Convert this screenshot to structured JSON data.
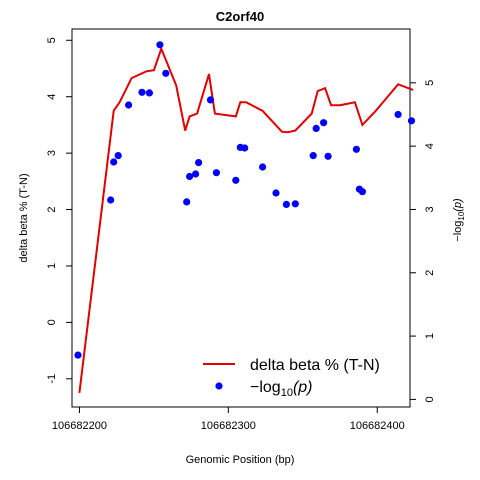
{
  "chart_data": {
    "type": "line",
    "title": "C2orf40",
    "xlabel": "Genomic Position (bp)",
    "ylabel_left": "delta beta % (T-N)",
    "ylabel_right": "−log",
    "ylabel_right_sub": "10",
    "ylabel_right_p": "(p)",
    "x_ticks": [
      106682200,
      106682300,
      106682400
    ],
    "x_tick_labels": [
      "106682200",
      "106682300",
      "106682400"
    ],
    "xlim": [
      106682195,
      106682422
    ],
    "ylim_left": [
      -1.5,
      5.2
    ],
    "yticks_left": [
      -1,
      0,
      1,
      2,
      3,
      4,
      5
    ],
    "yticks_left_labels": [
      "-1",
      "0",
      "1",
      "2",
      "3",
      "4",
      "5"
    ],
    "ylim_right": [
      -0.12,
      5.85
    ],
    "yticks_right": [
      0,
      1,
      2,
      3,
      4,
      5
    ],
    "yticks_right_labels": [
      "0",
      "1",
      "2",
      "3",
      "4",
      "5"
    ],
    "legend": {
      "placement": "bottom-right",
      "line_label": "delta beta % (T-N)",
      "points_label_prefix": "−log",
      "points_label_sub": "10",
      "points_label_suffix": "(p)"
    },
    "series": [
      {
        "name": "delta beta % (T-N)",
        "axis": "left",
        "color": "#e00000",
        "kind": "line",
        "points": [
          [
            106682200,
            -1.25
          ],
          [
            106682223,
            3.75
          ],
          [
            106682227,
            3.9
          ],
          [
            106682235,
            4.33
          ],
          [
            106682245,
            4.45
          ],
          [
            106682250,
            4.47
          ],
          [
            106682255,
            4.85
          ],
          [
            106682265,
            4.2
          ],
          [
            106682271,
            3.4
          ],
          [
            106682274,
            3.65
          ],
          [
            106682279,
            3.7
          ],
          [
            106682287,
            4.4
          ],
          [
            106682291,
            3.7
          ],
          [
            106682305,
            3.65
          ],
          [
            106682308,
            3.9
          ],
          [
            106682312,
            3.9
          ],
          [
            106682323,
            3.75
          ],
          [
            106682336,
            3.38
          ],
          [
            106682340,
            3.37
          ],
          [
            106682345,
            3.4
          ],
          [
            106682356,
            3.7
          ],
          [
            106682360,
            4.1
          ],
          [
            106682365,
            4.15
          ],
          [
            106682369,
            3.85
          ],
          [
            106682375,
            3.85
          ],
          [
            106682385,
            3.9
          ],
          [
            106682390,
            3.5
          ],
          [
            106682399,
            3.75
          ],
          [
            106682414,
            4.22
          ],
          [
            106682424,
            4.12
          ]
        ]
      },
      {
        "name": "−log10(p)",
        "axis": "right",
        "color": "#0000ff",
        "kind": "scatter",
        "points": [
          [
            106682199,
            0.7
          ],
          [
            106682221,
            3.15
          ],
          [
            106682223,
            3.75
          ],
          [
            106682226,
            3.85
          ],
          [
            106682233,
            4.65
          ],
          [
            106682242,
            4.85
          ],
          [
            106682247,
            4.84
          ],
          [
            106682254,
            5.6
          ],
          [
            106682258,
            5.15
          ],
          [
            106682272,
            3.12
          ],
          [
            106682274,
            3.52
          ],
          [
            106682278,
            3.56
          ],
          [
            106682280,
            3.74
          ],
          [
            106682288,
            4.73
          ],
          [
            106682292,
            3.58
          ],
          [
            106682305,
            3.46
          ],
          [
            106682308,
            3.98
          ],
          [
            106682311,
            3.97
          ],
          [
            106682323,
            3.67
          ],
          [
            106682332,
            3.26
          ],
          [
            106682339,
            3.08
          ],
          [
            106682345,
            3.09
          ],
          [
            106682357,
            3.85
          ],
          [
            106682359,
            4.28
          ],
          [
            106682364,
            4.37
          ],
          [
            106682367,
            3.84
          ],
          [
            106682386,
            3.95
          ],
          [
            106682388,
            3.32
          ],
          [
            106682390,
            3.28
          ],
          [
            106682414,
            4.5
          ],
          [
            106682423,
            4.4
          ]
        ]
      }
    ]
  }
}
